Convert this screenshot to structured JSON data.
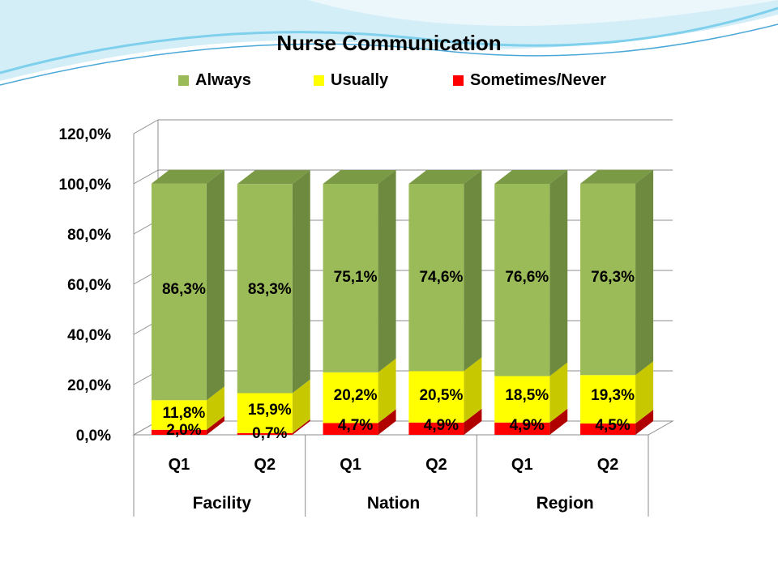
{
  "chart_data": {
    "type": "bar",
    "stacked": true,
    "three_d": true,
    "title": "Nurse Communication",
    "categories": [
      "Q1",
      "Q2",
      "Q1",
      "Q2",
      "Q1",
      "Q2"
    ],
    "groups": [
      {
        "label": "Facility",
        "categories": [
          "Q1",
          "Q2"
        ]
      },
      {
        "label": "Nation",
        "categories": [
          "Q1",
          "Q2"
        ]
      },
      {
        "label": "Region",
        "categories": [
          "Q1",
          "Q2"
        ]
      }
    ],
    "series": [
      {
        "name": "Sometimes/Never",
        "color": "#ff0000",
        "side_color": "#b00000",
        "values": [
          2.0,
          0.7,
          4.7,
          4.9,
          4.9,
          4.5
        ],
        "labels": [
          "2,0%",
          "0,7%",
          "4,7%",
          "4,9%",
          "4,9%",
          "4,5%"
        ]
      },
      {
        "name": "Usually",
        "color": "#ffff00",
        "side_color": "#c8c800",
        "values": [
          11.8,
          15.9,
          20.2,
          20.5,
          18.5,
          19.3
        ],
        "labels": [
          "11,8%",
          "15,9%",
          "20,2%",
          "20,5%",
          "18,5%",
          "19,3%"
        ]
      },
      {
        "name": "Always",
        "color": "#9bbb59",
        "side_color": "#6d8a3e",
        "values": [
          86.3,
          83.3,
          75.1,
          74.6,
          76.6,
          76.3
        ],
        "labels": [
          "86,3%",
          "83,3%",
          "75,1%",
          "74,6%",
          "76,6%",
          "76,3%"
        ]
      }
    ],
    "legend_order": [
      "Always",
      "Usually",
      "Sometimes/Never"
    ],
    "legend_position": "top",
    "ylim": [
      0,
      120
    ],
    "yticks": [
      "0,0%",
      "20,0%",
      "40,0%",
      "60,0%",
      "80,0%",
      "100,0%",
      "120,0%"
    ],
    "grid": true
  },
  "colors": {
    "swoosh_light": "#d4eef8",
    "swoosh_mid": "#7fd0ec",
    "swoosh_dark": "#4aa8d8",
    "top_face": "#7a9a45"
  }
}
